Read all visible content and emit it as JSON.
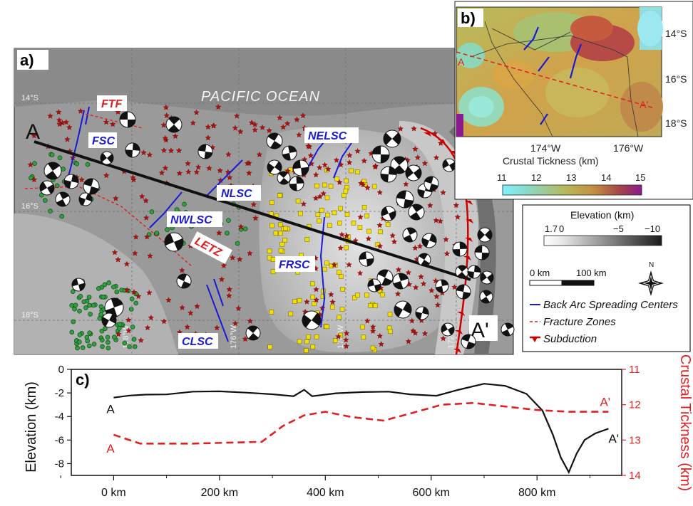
{
  "panel_a": {
    "label": "a)",
    "ocean_label": "PACIFIC OCEAN",
    "lat_labels": [
      "14°S",
      "16°S",
      "18°S"
    ],
    "lon_labels": [
      "178°W",
      "176°W",
      "174°W",
      "172°W"
    ],
    "profile_start": "A",
    "profile_end": "A'",
    "features_blue": [
      "FSC",
      "NELSC",
      "NLSC",
      "NWLSC",
      "FRSC",
      "CLSC"
    ],
    "features_red": [
      "FTF",
      "LETZ"
    ]
  },
  "panel_b": {
    "label": "b)",
    "lat_labels": [
      "14°S",
      "16°S",
      "18°S"
    ],
    "lon_labels": [
      "174°W",
      "176°W"
    ],
    "profile_start": "A",
    "profile_end": "A'",
    "colorbar_title": "Crustal Tickness (km)",
    "colorbar_ticks": [
      "11",
      "12",
      "13",
      "14",
      "15"
    ]
  },
  "legend": {
    "elevation_title": "Elevation (km)",
    "elevation_ticks": [
      "1.7",
      "0",
      "−5",
      "−10"
    ],
    "scale_left": "0 km",
    "scale_right": "100 km",
    "north": "N",
    "items": [
      "Back Arc Spreading Centers",
      "Fracture Zones",
      "Subduction"
    ]
  },
  "colors": {
    "spreading": "#1a1ad6",
    "fracture": "#e02020",
    "subduction": "#cc0000",
    "earthquake_green": "#2e9e3e",
    "earthquake_yellow": "#f2e100",
    "earthquake_red": "#b01010"
  },
  "chart_data": {
    "type": "line",
    "panel_label": "c)",
    "xlabel": "",
    "ylabel_left": "Elevation (km)",
    "ylabel_right": "Crustal Tickness (km)",
    "xlim": [
      -80,
      960
    ],
    "ylim_left": [
      -9,
      0
    ],
    "ylim_right": [
      14,
      11
    ],
    "x_ticks": [
      "0 km",
      "200 km",
      "400 km",
      "600 km",
      "800 km"
    ],
    "x_tick_values": [
      0,
      200,
      400,
      600,
      800
    ],
    "y_left_ticks": [
      "0",
      "-2",
      "-4",
      "-6",
      "-8"
    ],
    "y_left_values": [
      0,
      -2,
      -4,
      -6,
      -8
    ],
    "y_right_ticks": [
      "11",
      "12",
      "13",
      "14"
    ],
    "y_right_values": [
      11,
      12,
      13,
      14
    ],
    "series": [
      {
        "axis": "left",
        "start_label": "A",
        "end_label": "A'",
        "points": [
          [
            0,
            -2.4
          ],
          [
            30,
            -2.3
          ],
          [
            60,
            -2.1
          ],
          [
            100,
            -2.2
          ],
          [
            150,
            -1.9
          ],
          [
            200,
            -1.8
          ],
          [
            250,
            -1.9
          ],
          [
            300,
            -2.1
          ],
          [
            340,
            -2.2
          ],
          [
            360,
            -1.7
          ],
          [
            375,
            -2.2
          ],
          [
            420,
            -2.1
          ],
          [
            470,
            -2.0
          ],
          [
            520,
            -1.9
          ],
          [
            560,
            -2.2
          ],
          [
            610,
            -2.3
          ],
          [
            650,
            -1.8
          ],
          [
            700,
            -1.3
          ],
          [
            740,
            -1.4
          ],
          [
            780,
            -2.0
          ],
          [
            810,
            -3.5
          ],
          [
            830,
            -5.5
          ],
          [
            845,
            -7.5
          ],
          [
            860,
            -8.8
          ],
          [
            875,
            -7.2
          ],
          [
            890,
            -6.0
          ],
          [
            910,
            -5.5
          ],
          [
            935,
            -5.0
          ]
        ]
      },
      {
        "axis": "right",
        "start_label": "A",
        "end_label": "A'",
        "points": [
          [
            0,
            12.85
          ],
          [
            50,
            13.1
          ],
          [
            150,
            13.1
          ],
          [
            280,
            13.05
          ],
          [
            320,
            12.6
          ],
          [
            360,
            12.3
          ],
          [
            400,
            12.2
          ],
          [
            450,
            12.35
          ],
          [
            510,
            12.45
          ],
          [
            560,
            12.25
          ],
          [
            620,
            12.0
          ],
          [
            680,
            11.95
          ],
          [
            740,
            12.05
          ],
          [
            800,
            12.15
          ],
          [
            860,
            12.2
          ],
          [
            935,
            12.2
          ]
        ]
      }
    ]
  }
}
